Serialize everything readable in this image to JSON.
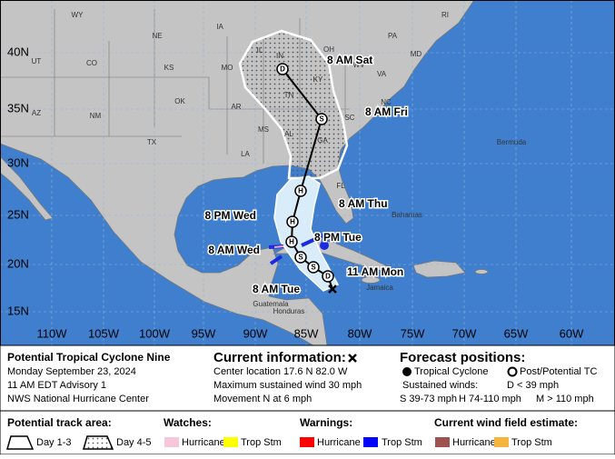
{
  "map": {
    "latitude_labels": [
      "40N",
      "35N",
      "30N",
      "25N",
      "20N",
      "15N"
    ],
    "longitude_labels": [
      "110W",
      "105W",
      "100W",
      "95W",
      "90W",
      "85W",
      "80W",
      "75W",
      "70W",
      "65W",
      "60W"
    ],
    "place_labels": [
      "WY",
      "IA",
      "NE",
      "UT",
      "CO",
      "IL",
      "IN",
      "OH",
      "KS",
      "MO",
      "KY",
      "WV",
      "VA",
      "NC",
      "TN",
      "SC",
      "OK",
      "AR",
      "MS",
      "AL",
      "GA",
      "AZ",
      "NM",
      "TX",
      "LA",
      "FL",
      "PA",
      "RI",
      "MD",
      "Bermuda",
      "Bahamas",
      "Jamaica",
      "Guatemala",
      "Honduras"
    ],
    "track_points": [
      {
        "letter": "D",
        "label": "11 AM Mon"
      },
      {
        "letter": "S",
        "label": "8 AM Tue"
      },
      {
        "letter": "S",
        "label": "8 PM Tue"
      },
      {
        "letter": "H",
        "label": "8 AM Wed"
      },
      {
        "letter": "H",
        "label": "8 PM Wed"
      },
      {
        "letter": "H",
        "label": "8 AM Thu"
      },
      {
        "letter": "S",
        "label": "8 AM Fri"
      },
      {
        "letter": "D",
        "label": "8 AM Sat"
      }
    ]
  },
  "legend": {
    "title": "Potential Tropical Cyclone Nine",
    "date": "Monday September 23, 2024",
    "advisory": "11 AM EDT Advisory 1",
    "agency": "NWS National Hurricane Center",
    "current": {
      "heading": "Current information:",
      "lines": [
        "Center location 17.6 N 82.0 W",
        "Maximum sustained wind 30 mph",
        "Movement N at 6 mph"
      ]
    },
    "forecast": {
      "heading": "Forecast positions:",
      "tropical": "Tropical Cyclone",
      "post": "Post/Potential TC",
      "winds_heading": "Sustained winds:",
      "winds": [
        "D < 39 mph",
        "S 39-73 mph",
        "H 74-110 mph",
        "M > 110 mph"
      ]
    },
    "track_area": {
      "heading": "Potential track area:",
      "day13": "Day 1-3",
      "day45": "Day 4-5"
    },
    "watches": {
      "heading": "Watches:",
      "items": [
        "Hurricane",
        "Trop Stm"
      ]
    },
    "warnings": {
      "heading": "Warnings:",
      "items": [
        "Hurricane",
        "Trop Stm"
      ]
    },
    "wind_field": {
      "heading": "Current wind field estimate:",
      "items": [
        "Hurricane",
        "Trop Stm"
      ]
    }
  }
}
